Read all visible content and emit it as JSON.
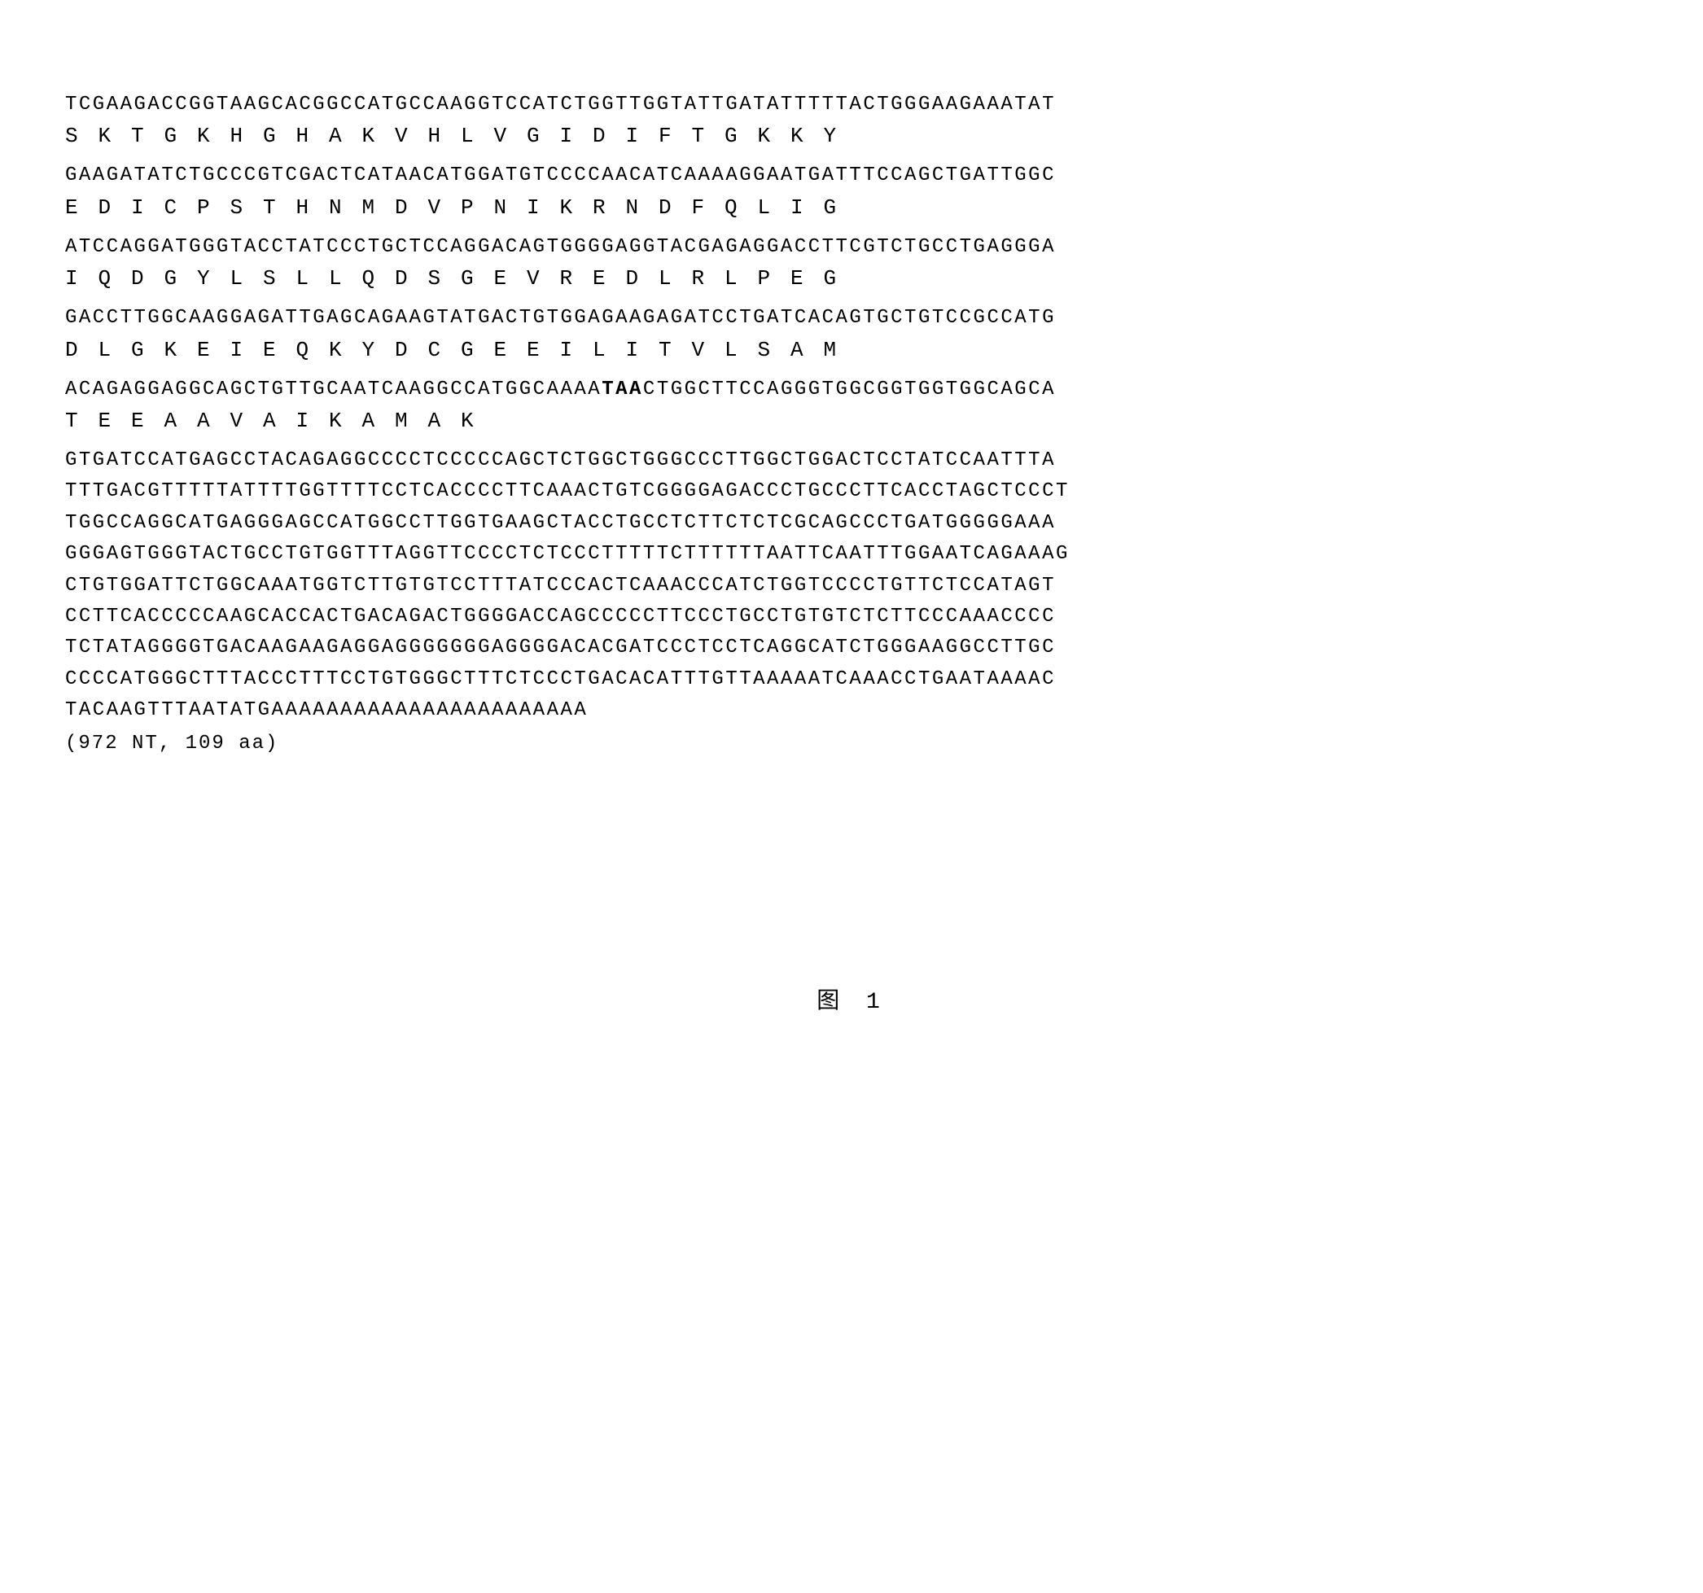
{
  "styling": {
    "background_color": "#ffffff",
    "text_color": "#000000",
    "nt_font_size": 24,
    "aa_font_size": 26,
    "nt_letter_spacing": 2.5,
    "aa_cell_width": 40.5,
    "font_family": "Courier New",
    "line_height": 1.6
  },
  "sequence_pairs": [
    {
      "nt": "TCGAAGACCGGTAAGCACGGCCATGCCAAGGTCCATCTGGTTGGTATTGATATTTTTACTGGGAAGAAATAT",
      "aa": [
        "S",
        "K",
        "T",
        "G",
        "K",
        "H",
        "G",
        "H",
        "A",
        "K",
        "V",
        "H",
        "L",
        "V",
        "G",
        "I",
        "D",
        "I",
        "F",
        "T",
        "G",
        "K",
        "K",
        "Y"
      ]
    },
    {
      "nt": "GAAGATATCTGCCCGTCGACTCATAACATGGATGTCCCCAACATCAAAAGGAATGATTTCCAGCTGATTGGC",
      "aa": [
        "E",
        "D",
        "I",
        "C",
        "P",
        "S",
        "T",
        "H",
        "N",
        "M",
        "D",
        "V",
        "P",
        "N",
        "I",
        "K",
        "R",
        "N",
        "D",
        "F",
        "Q",
        "L",
        "I",
        "G"
      ]
    },
    {
      "nt": "ATCCAGGATGGGTACCTATCCCTGCTCCAGGACAGTGGGGAGGTACGAGAGGACCTTCGTCTGCCTGAGGGA",
      "aa": [
        "I",
        "Q",
        "D",
        "G",
        "Y",
        "L",
        "S",
        "L",
        "L",
        "Q",
        "D",
        "S",
        "G",
        "E",
        "V",
        "R",
        "E",
        "D",
        "L",
        "R",
        "L",
        "P",
        "E",
        "G"
      ]
    },
    {
      "nt": "GACCTTGGCAAGGAGATTGAGCAGAAGTATGACTGTGGAGAAGAGATCCTGATCACAGTGCTGTCCGCCATG",
      "aa": [
        "D",
        "L",
        "G",
        "K",
        "E",
        "I",
        "E",
        "Q",
        "K",
        "Y",
        "D",
        "C",
        "G",
        "E",
        "E",
        "I",
        "L",
        "I",
        "T",
        "V",
        "L",
        "S",
        "A",
        "M"
      ]
    },
    {
      "nt_pre_stop": "ACAGAGGAGGCAGCTGTTGCAATCAAGGCCATGGCAAAA",
      "stop_codon": "TAA",
      "nt_post_stop": "CTGGCTTCCAGGGTGGCGGTGGTGGCAGCA",
      "aa": [
        "T",
        "E",
        "E",
        "A",
        "A",
        "V",
        "A",
        "I",
        "K",
        "A",
        "M",
        "A",
        "K"
      ]
    }
  ],
  "utr_lines": [
    "GTGATCCATGAGCCTACAGAGGCCCCTCCCCCAGCTCTGGCTGGGCCCTTGGCTGGACTCCTATCCAATTTA",
    "TTTGACGTTTTTATTTTGGTTTTCCTCACCCCTTCAAACTGTCGGGGAGACCCTGCCCTTCACCTAGCTCCCT",
    "TGGCCAGGCATGAGGGAGCCATGGCCTTGGTGAAGCTACCTGCCTCTTCTCTCGCAGCCCTGATGGGGGAAA",
    "GGGAGTGGGTACTGCCTGTGGTTTAGGTTCCCCTCTCCCTTTTTCTTTTTTAATTCAATTTGGAATCAGAAAG",
    "CTGTGGATTCTGGCAAATGGTCTTGTGTCCTTTATCCCACTCAAACCCATCTGGTCCCCTGTTCTCCATAGT",
    "CCTTCACCCCCAAGCACCACTGACAGACTGGGGACCAGCCCCCTTCCCTGCCTGTGTCTCTTCCCAAACCCC",
    "TCTATAGGGGTGACAAGAAGAGGAGGGGGGGAGGGGACACGATCCCTCCTCAGGCATCTGGGAAGGCCTTGC",
    "CCCCATGGGCTTTACCCTTTCCTGTGGGCTTTCTCCCTGACACATTTGTTAAAAATCAAACCTGAATAAAAC",
    "TACAAGTTTAATATGAAAAAAAAAAAAAAAAAAAAAAA"
  ],
  "summary": "(972 NT, 109 aa)",
  "figure_label": "图   1"
}
